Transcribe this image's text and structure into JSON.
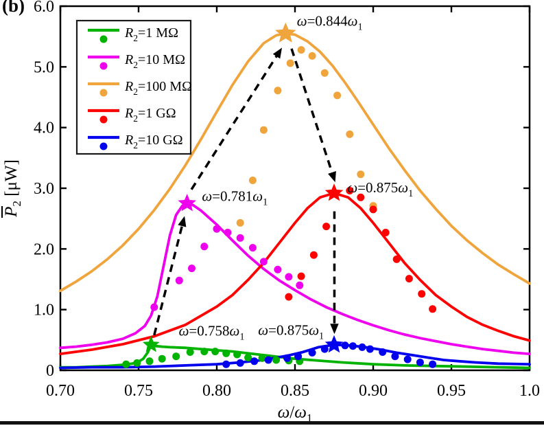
{
  "figure_label": "(b)",
  "axes": {
    "xlabel": "ω/ω_1",
    "ylabel": "P_2 [μW]",
    "ylabel_overbar": true,
    "xlim": [
      0.7,
      1.0
    ],
    "ylim": [
      0,
      6.0
    ],
    "x_ticks": [
      {
        "v": 0.7,
        "label": "0.70"
      },
      {
        "v": 0.75,
        "label": "0.75"
      },
      {
        "v": 0.8,
        "label": "0.80"
      },
      {
        "v": 0.85,
        "label": "0.85"
      },
      {
        "v": 0.9,
        "label": "0.90"
      },
      {
        "v": 0.95,
        "label": "0.95"
      },
      {
        "v": 1.0,
        "label": "1.0"
      }
    ],
    "y_ticks": [
      {
        "v": 0,
        "label": "0"
      },
      {
        "v": 1,
        "label": "1.0"
      },
      {
        "v": 2,
        "label": "2.0"
      },
      {
        "v": 3,
        "label": "3.0"
      },
      {
        "v": 4,
        "label": "4.0"
      },
      {
        "v": 5,
        "label": "5.0"
      },
      {
        "v": 6,
        "label": "6.0"
      }
    ]
  },
  "legend": {
    "position": "upper-left",
    "items": [
      {
        "label": "R_2=1 MΩ",
        "series": "r2-1-mohm"
      },
      {
        "label": "R_2=10 MΩ",
        "series": "r2-10-mohm"
      },
      {
        "label": "R_2=100 MΩ",
        "series": "r2-100-mohm"
      },
      {
        "label": "R_2=1 GΩ",
        "series": "r2-1-gohm"
      },
      {
        "label": "R_2=10 GΩ",
        "series": "r2-10-gohm"
      }
    ]
  },
  "chart_data": {
    "type": "line+scatter",
    "title": "",
    "xlabel": "ω/ω_1",
    "ylabel": "P_2 [μW]",
    "xlim": [
      0.7,
      1.0
    ],
    "ylim": [
      0,
      6.0
    ],
    "grid": false,
    "series": [
      {
        "name": "R_2=1 MΩ",
        "slug": "r2-1-mohm",
        "color": "#00B300",
        "line": {
          "x": [
            0.7,
            0.71,
            0.72,
            0.73,
            0.74,
            0.746,
            0.75,
            0.753,
            0.756,
            0.758,
            0.761,
            0.765,
            0.77,
            0.78,
            0.79,
            0.8,
            0.81,
            0.82,
            0.83,
            0.84,
            0.85,
            0.86,
            0.88,
            0.9,
            0.92,
            0.94,
            0.96,
            0.98,
            1.0
          ],
          "y": [
            0.05,
            0.05,
            0.06,
            0.07,
            0.09,
            0.11,
            0.14,
            0.19,
            0.3,
            0.42,
            0.4,
            0.39,
            0.38,
            0.37,
            0.35,
            0.33,
            0.31,
            0.28,
            0.25,
            0.22,
            0.19,
            0.17,
            0.13,
            0.1,
            0.08,
            0.07,
            0.06,
            0.05,
            0.04
          ]
        },
        "points": [
          [
            0.742,
            0.1
          ],
          [
            0.749,
            0.12
          ],
          [
            0.757,
            0.15
          ],
          [
            0.765,
            0.19
          ],
          [
            0.774,
            0.23
          ],
          [
            0.783,
            0.3
          ],
          [
            0.792,
            0.31
          ],
          [
            0.799,
            0.31
          ],
          [
            0.806,
            0.28
          ],
          [
            0.813,
            0.26
          ],
          [
            0.82,
            0.21
          ],
          [
            0.829,
            0.2
          ],
          [
            0.838,
            0.17
          ],
          [
            0.846,
            0.16
          ],
          [
            0.853,
            0.15
          ]
        ],
        "peak": {
          "x": 0.758,
          "y": 0.42,
          "label": "ω=0.758ω_1",
          "star_size": 13,
          "label_pos": {
            "x": 0.7757,
            "y": 0.57,
            "anchor": "start"
          }
        }
      },
      {
        "name": "R_2=10 MΩ",
        "slug": "r2-10-mohm",
        "color": "#EE00EE",
        "line": {
          "x": [
            0.7,
            0.71,
            0.72,
            0.73,
            0.74,
            0.748,
            0.754,
            0.758,
            0.762,
            0.766,
            0.77,
            0.774,
            0.778,
            0.781,
            0.785,
            0.79,
            0.8,
            0.81,
            0.82,
            0.83,
            0.84,
            0.85,
            0.86,
            0.87,
            0.88,
            0.89,
            0.9,
            0.91,
            0.92,
            0.93,
            0.94,
            0.95,
            0.96,
            0.97,
            0.98,
            0.99,
            1.0
          ],
          "y": [
            0.37,
            0.39,
            0.42,
            0.46,
            0.52,
            0.61,
            0.73,
            0.9,
            1.22,
            1.72,
            2.22,
            2.56,
            2.71,
            2.75,
            2.72,
            2.63,
            2.4,
            2.14,
            1.89,
            1.67,
            1.48,
            1.32,
            1.17,
            1.04,
            0.93,
            0.83,
            0.74,
            0.66,
            0.59,
            0.53,
            0.48,
            0.43,
            0.39,
            0.35,
            0.32,
            0.29,
            0.27
          ]
        },
        "points": [
          [
            0.76,
            1.04
          ],
          [
            0.776,
            1.48
          ],
          [
            0.784,
            1.68
          ],
          [
            0.792,
            2.04
          ],
          [
            0.8,
            2.33
          ],
          [
            0.807,
            2.27
          ],
          [
            0.815,
            2.18
          ],
          [
            0.823,
            2.02
          ],
          [
            0.83,
            1.79
          ],
          [
            0.839,
            1.66
          ],
          [
            0.846,
            1.54
          ],
          [
            0.853,
            1.4
          ]
        ],
        "peak": {
          "x": 0.781,
          "y": 2.75,
          "label": "ω=0.781ω_1",
          "star_size": 14,
          "label_pos": {
            "x": 0.7905,
            "y": 2.79,
            "anchor": "start"
          }
        }
      },
      {
        "name": "R_2=100 MΩ",
        "slug": "r2-100-mohm",
        "color": "#F0A43C",
        "line": {
          "x": [
            0.7,
            0.71,
            0.72,
            0.73,
            0.74,
            0.75,
            0.76,
            0.77,
            0.78,
            0.79,
            0.8,
            0.81,
            0.82,
            0.83,
            0.838,
            0.844,
            0.85,
            0.858,
            0.866,
            0.874,
            0.882,
            0.89,
            0.9,
            0.91,
            0.92,
            0.93,
            0.94,
            0.95,
            0.96,
            0.97,
            0.98,
            0.99,
            1.0
          ],
          "y": [
            1.31,
            1.46,
            1.63,
            1.83,
            2.06,
            2.33,
            2.64,
            2.99,
            3.38,
            3.81,
            4.26,
            4.7,
            5.09,
            5.39,
            5.52,
            5.55,
            5.53,
            5.42,
            5.25,
            5.02,
            4.74,
            4.44,
            4.05,
            3.66,
            3.3,
            2.96,
            2.66,
            2.38,
            2.14,
            1.93,
            1.74,
            1.58,
            1.43
          ]
        },
        "points": [
          [
            0.815,
            2.43
          ],
          [
            0.823,
            3.13
          ],
          [
            0.83,
            3.96
          ],
          [
            0.839,
            4.61
          ],
          [
            0.847,
            5.06
          ],
          [
            0.854,
            5.28
          ],
          [
            0.861,
            5.18
          ],
          [
            0.869,
            4.9
          ],
          [
            0.877,
            4.53
          ],
          [
            0.885,
            3.89
          ],
          [
            0.892,
            3.23
          ],
          [
            0.9,
            2.71
          ]
        ],
        "peak": {
          "x": 0.844,
          "y": 5.55,
          "label": "ω=0.844ω_1",
          "star_size": 16,
          "label_pos": {
            "x": 0.8512,
            "y": 5.68,
            "anchor": "start"
          }
        }
      },
      {
        "name": "R_2=1 GΩ",
        "slug": "r2-1-gohm",
        "color": "#FF0000",
        "line": {
          "x": [
            0.7,
            0.72,
            0.74,
            0.76,
            0.78,
            0.8,
            0.81,
            0.82,
            0.83,
            0.84,
            0.85,
            0.858,
            0.866,
            0.875,
            0.884,
            0.892,
            0.9,
            0.91,
            0.92,
            0.93,
            0.94,
            0.95,
            0.96,
            0.97,
            0.98,
            0.99,
            1.0
          ],
          "y": [
            0.27,
            0.34,
            0.43,
            0.56,
            0.75,
            1.05,
            1.24,
            1.49,
            1.77,
            2.1,
            2.43,
            2.67,
            2.85,
            2.92,
            2.85,
            2.67,
            2.43,
            2.1,
            1.77,
            1.49,
            1.24,
            1.05,
            0.88,
            0.75,
            0.65,
            0.56,
            0.49
          ]
        },
        "points": [
          [
            0.846,
            1.21
          ],
          [
            0.854,
            1.55
          ],
          [
            0.862,
            1.9
          ],
          [
            0.87,
            2.37
          ],
          [
            0.885,
            2.96
          ],
          [
            0.892,
            2.85
          ],
          [
            0.9,
            2.65
          ],
          [
            0.908,
            2.27
          ],
          [
            0.915,
            1.83
          ],
          [
            0.923,
            1.51
          ],
          [
            0.931,
            1.26
          ],
          [
            0.938,
            1.01
          ]
        ],
        "peak": {
          "x": 0.875,
          "y": 2.92,
          "label": "ω=0.875ω_1",
          "star_size": 14,
          "label_pos": {
            "x": 0.8835,
            "y": 2.93,
            "anchor": "start"
          }
        }
      },
      {
        "name": "R_2=10 GΩ",
        "slug": "r2-10-gohm",
        "color": "#0000EE",
        "line": {
          "x": [
            0.7,
            0.72,
            0.74,
            0.76,
            0.78,
            0.8,
            0.815,
            0.83,
            0.845,
            0.855,
            0.865,
            0.875,
            0.885,
            0.895,
            0.905,
            0.915,
            0.925,
            0.935,
            0.945,
            0.955,
            0.965,
            0.98,
            1.0
          ],
          "y": [
            0.04,
            0.05,
            0.05,
            0.06,
            0.08,
            0.1,
            0.13,
            0.17,
            0.24,
            0.3,
            0.38,
            0.42,
            0.41,
            0.38,
            0.34,
            0.29,
            0.25,
            0.21,
            0.17,
            0.15,
            0.13,
            0.11,
            0.1
          ]
        },
        "points": [
          [
            0.806,
            0.1
          ],
          [
            0.815,
            0.12
          ],
          [
            0.824,
            0.15
          ],
          [
            0.833,
            0.17
          ],
          [
            0.845,
            0.2
          ],
          [
            0.852,
            0.23
          ],
          [
            0.861,
            0.29
          ],
          [
            0.869,
            0.35
          ],
          [
            0.882,
            0.41
          ],
          [
            0.887,
            0.4
          ],
          [
            0.893,
            0.38
          ],
          [
            0.898,
            0.35
          ],
          [
            0.906,
            0.3
          ],
          [
            0.914,
            0.23
          ],
          [
            0.922,
            0.18
          ],
          [
            0.93,
            0.13
          ],
          [
            0.938,
            0.1
          ]
        ],
        "peak": {
          "x": 0.875,
          "y": 0.42,
          "label": "ω=0.875ω_1",
          "star_size": 14,
          "label_pos": {
            "x": 0.8685,
            "y": 0.585,
            "anchor": "end"
          }
        }
      }
    ],
    "arrows": [
      {
        "x1": 0.76,
        "y1": 0.58,
        "x2": 0.779,
        "y2": 2.5
      },
      {
        "x1": 0.7838,
        "y1": 2.98,
        "x2": 0.8408,
        "y2": 5.28
      },
      {
        "x1": 0.8478,
        "y1": 5.3,
        "x2": 0.8752,
        "y2": 3.14
      },
      {
        "x1": 0.8752,
        "y1": 2.62,
        "x2": 0.8752,
        "y2": 0.64
      }
    ]
  }
}
